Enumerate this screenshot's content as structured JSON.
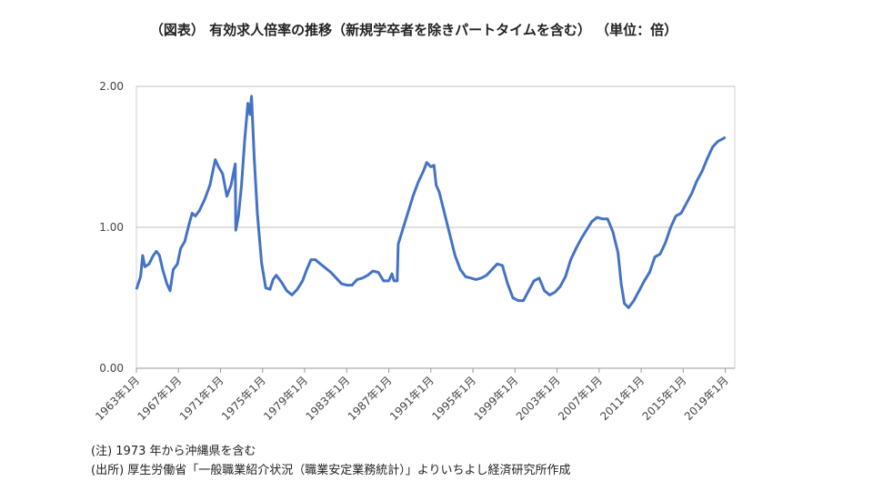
{
  "chart_data": {
    "type": "line",
    "title": "（図表） 有効求人倍率の推移（新規学卒者を除きパートタイムを含む） （単位：倍）",
    "notes": [
      "(注) 1973 年から沖縄県を含む",
      "(出所) 厚生労働省「一般職業紹介状況（職業安定業務統計）」よりいちよし経済研究所作成"
    ],
    "x": [
      1963.0,
      1963.4,
      1963.6,
      1963.8,
      1964.2,
      1964.6,
      1964.9,
      1965.2,
      1965.5,
      1965.9,
      1966.2,
      1966.5,
      1966.9,
      1967.2,
      1967.6,
      1968.0,
      1968.3,
      1968.6,
      1969.0,
      1969.5,
      1970.0,
      1970.5,
      1970.8,
      1971.2,
      1971.6,
      1972.0,
      1972.4,
      1972.45,
      1972.7,
      1973.0,
      1973.3,
      1973.6,
      1973.8,
      1973.95,
      1974.2,
      1974.5,
      1974.9,
      1975.3,
      1975.7,
      1976.0,
      1976.3,
      1976.8,
      1977.3,
      1977.8,
      1978.3,
      1978.8,
      1979.2,
      1979.6,
      1980.0,
      1980.5,
      1981.0,
      1981.5,
      1982.0,
      1982.5,
      1983.0,
      1983.5,
      1984.0,
      1984.5,
      1985.0,
      1985.5,
      1986.0,
      1986.5,
      1987.0,
      1987.3,
      1987.5,
      1987.8,
      1987.9,
      1988.3,
      1988.8,
      1989.3,
      1989.8,
      1990.3,
      1990.6,
      1991.0,
      1991.3,
      1991.5,
      1991.8,
      1992.3,
      1992.8,
      1993.3,
      1993.8,
      1994.3,
      1994.8,
      1995.3,
      1995.8,
      1996.3,
      1996.8,
      1997.3,
      1997.8,
      1998.3,
      1998.8,
      1999.3,
      1999.8,
      2000.3,
      2000.8,
      2001.3,
      2001.8,
      2002.3,
      2002.8,
      2003.3,
      2003.8,
      2004.3,
      2004.8,
      2005.3,
      2005.8,
      2006.3,
      2006.8,
      2007.3,
      2007.8,
      2008.3,
      2008.8,
      2009.1,
      2009.4,
      2009.8,
      2010.3,
      2010.8,
      2011.3,
      2011.8,
      2012.3,
      2012.8,
      2013.3,
      2013.8,
      2014.3,
      2014.8,
      2015.3,
      2015.8,
      2016.3,
      2016.8,
      2017.3,
      2017.8,
      2018.3,
      2018.8,
      2019.0
    ],
    "series": [
      {
        "name": "有効求人倍率",
        "color": "#4472c4",
        "values": [
          0.56,
          0.65,
          0.8,
          0.72,
          0.74,
          0.8,
          0.83,
          0.8,
          0.7,
          0.6,
          0.55,
          0.7,
          0.74,
          0.85,
          0.9,
          1.02,
          1.1,
          1.08,
          1.12,
          1.2,
          1.3,
          1.48,
          1.43,
          1.38,
          1.22,
          1.3,
          1.45,
          0.98,
          1.08,
          1.3,
          1.62,
          1.88,
          1.8,
          1.93,
          1.5,
          1.1,
          0.75,
          0.57,
          0.56,
          0.63,
          0.66,
          0.61,
          0.55,
          0.52,
          0.56,
          0.62,
          0.7,
          0.77,
          0.77,
          0.74,
          0.71,
          0.68,
          0.64,
          0.6,
          0.59,
          0.59,
          0.63,
          0.64,
          0.66,
          0.69,
          0.68,
          0.62,
          0.62,
          0.67,
          0.62,
          0.62,
          0.88,
          0.98,
          1.1,
          1.22,
          1.32,
          1.4,
          1.46,
          1.43,
          1.44,
          1.3,
          1.25,
          1.1,
          0.95,
          0.8,
          0.7,
          0.65,
          0.64,
          0.63,
          0.64,
          0.66,
          0.7,
          0.74,
          0.73,
          0.6,
          0.5,
          0.48,
          0.48,
          0.55,
          0.62,
          0.64,
          0.55,
          0.52,
          0.54,
          0.58,
          0.65,
          0.77,
          0.85,
          0.92,
          0.98,
          1.04,
          1.07,
          1.06,
          1.06,
          0.97,
          0.82,
          0.6,
          0.46,
          0.43,
          0.48,
          0.55,
          0.62,
          0.68,
          0.79,
          0.81,
          0.89,
          1.0,
          1.08,
          1.1,
          1.17,
          1.24,
          1.33,
          1.4,
          1.49,
          1.57,
          1.61,
          1.63,
          1.64
        ]
      }
    ],
    "xlim": [
      1963,
      2019.9
    ],
    "xticks": [
      {
        "value": 1963,
        "label": "1963年1月"
      },
      {
        "value": 1967,
        "label": "1967年1月"
      },
      {
        "value": 1971,
        "label": "1971年1月"
      },
      {
        "value": 1975,
        "label": "1975年1月"
      },
      {
        "value": 1979,
        "label": "1979年1月"
      },
      {
        "value": 1983,
        "label": "1983年1月"
      },
      {
        "value": 1987,
        "label": "1987年1月"
      },
      {
        "value": 1991,
        "label": "1991年1月"
      },
      {
        "value": 1995,
        "label": "1995年1月"
      },
      {
        "value": 1999,
        "label": "1999年1月"
      },
      {
        "value": 2003,
        "label": "2003年1月"
      },
      {
        "value": 2007,
        "label": "2007年1月"
      },
      {
        "value": 2011,
        "label": "2011年1月"
      },
      {
        "value": 2015,
        "label": "2015年1月"
      },
      {
        "value": 2019,
        "label": "2019年1月"
      }
    ],
    "ylim": [
      0,
      2
    ],
    "yticks": [
      {
        "value": 0,
        "label": "0.00"
      },
      {
        "value": 1,
        "label": "1.00"
      },
      {
        "value": 2,
        "label": "2.00"
      }
    ],
    "grid": true
  }
}
